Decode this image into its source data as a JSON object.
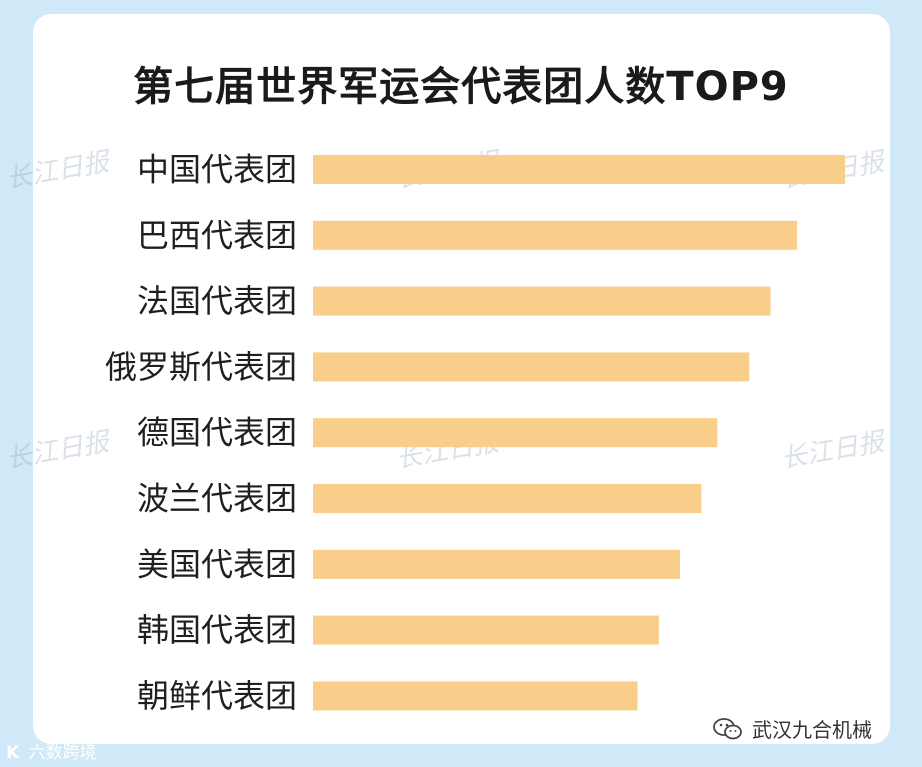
{
  "chart_data": {
    "type": "bar",
    "orientation": "horizontal",
    "title": "第七届世界军运会代表团人数TOP9",
    "categories": [
      "中国代表团",
      "巴西代表团",
      "法国代表团",
      "俄罗斯代表团",
      "德国代表团",
      "波兰代表团",
      "美国代表团",
      "韩国代表团",
      "朝鲜代表团"
    ],
    "values": [
      100,
      91,
      86,
      82,
      76,
      73,
      69,
      65,
      61
    ],
    "bar_color": "#f9cd8a",
    "value_labels_shown": false,
    "axis_shown": false,
    "legend": "none"
  },
  "watermark": {
    "text": "长江日报"
  },
  "sources": {
    "left_logo": "K",
    "left_text": "六数跨境",
    "right_text": "武汉九合机械",
    "right_icon": "wechat-icon"
  }
}
